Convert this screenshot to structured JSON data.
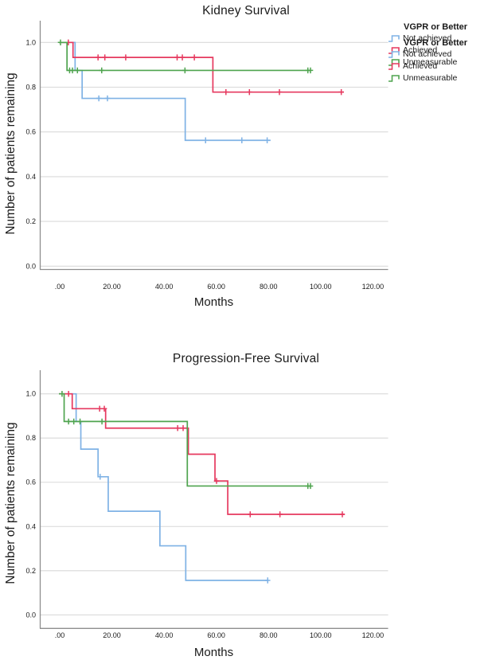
{
  "colors": {
    "not_achieved": "#7FB2E5",
    "achieved": "#E6395F",
    "unmeasurable": "#4FA44F",
    "gridline": "#D9D9D9",
    "axis_line": "#8E8E8E",
    "text": "#1a1a1a"
  },
  "chart_data": [
    {
      "type": "line",
      "subtype": "kaplan-meier-step",
      "title": "Kidney Survival",
      "xlabel": "Months",
      "ylabel": "Number of patients remaining",
      "legend_title": "VGPR or Better",
      "legend_position": "right",
      "grid": "horizontal",
      "xlim": [
        0,
        126
      ],
      "ylim": [
        0,
        1.0
      ],
      "x_tick_values": [
        0,
        20,
        40,
        60,
        80,
        100,
        120
      ],
      "x_tick_labels": [
        ".00",
        "20.00",
        "40.00",
        "60.00",
        "80.00",
        "100.00",
        "120.00"
      ],
      "y_tick_values": [
        0,
        0.2,
        0.4,
        0.6,
        0.8,
        1.0
      ],
      "y_tick_labels": [
        "0.0",
        "0.2",
        "0.4",
        "0.6",
        "0.8",
        "1.0"
      ],
      "series": [
        {
          "name": "Not achieved",
          "color_key": "not_achieved",
          "start_value": 1.0,
          "drops": [
            [
              6.2,
              0.875
            ],
            [
              8.9,
              0.75
            ],
            [
              48.4,
              0.5625
            ]
          ],
          "end_time": 81.1,
          "censors": [
            [
              15.3,
              0.75
            ],
            [
              18.6,
              0.75
            ],
            [
              56.2,
              0.5625
            ],
            [
              70.1,
              0.5625
            ],
            [
              79.8,
              0.5625
            ]
          ]
        },
        {
          "name": "Achieved",
          "color_key": "achieved",
          "start_value": 1.0,
          "drops": [
            [
              5.4,
              0.933
            ],
            [
              59.0,
              0.778
            ]
          ],
          "end_time": 109.2,
          "censors": [
            [
              3.6,
              1.0
            ],
            [
              15.0,
              0.933
            ],
            [
              17.6,
              0.933
            ],
            [
              25.6,
              0.933
            ],
            [
              45.3,
              0.933
            ],
            [
              47.3,
              0.933
            ],
            [
              51.9,
              0.933
            ],
            [
              64.0,
              0.778
            ],
            [
              73.0,
              0.778
            ],
            [
              84.5,
              0.778
            ],
            [
              108.2,
              0.778
            ]
          ]
        },
        {
          "name": "Unmeasurable",
          "color_key": "unmeasurable",
          "start_value": 1.0,
          "drops": [
            [
              3.1,
              0.875
            ]
          ],
          "end_time": 96.7,
          "censors": [
            [
              0.6,
              1.0
            ],
            [
              4.1,
              0.875
            ],
            [
              5.2,
              0.875
            ],
            [
              7.1,
              0.875
            ],
            [
              16.4,
              0.875
            ],
            [
              48.3,
              0.875
            ],
            [
              95.4,
              0.875
            ],
            [
              96.4,
              0.875
            ]
          ]
        }
      ]
    },
    {
      "type": "line",
      "subtype": "kaplan-meier-step",
      "title": "Progression-Free Survival",
      "xlabel": "Months",
      "ylabel": "Number of patients remaining",
      "legend_title": "VGPR or Better",
      "legend_position": "right",
      "grid": "horizontal",
      "xlim": [
        0,
        126
      ],
      "ylim": [
        0,
        1.0
      ],
      "x_tick_values": [
        0,
        20,
        40,
        60,
        80,
        100,
        120
      ],
      "x_tick_labels": [
        ".00",
        "20.00",
        "40.00",
        "60.00",
        "80.00",
        "100.00",
        "120.00"
      ],
      "y_tick_values": [
        0,
        0.2,
        0.4,
        0.6,
        0.8,
        1.0
      ],
      "y_tick_labels": [
        "0.0",
        "0.2",
        "0.4",
        "0.6",
        "0.8",
        "1.0"
      ],
      "series": [
        {
          "name": "Not achieved",
          "color_key": "not_achieved",
          "start_value": 1.0,
          "drops": [
            [
              6.6,
              0.875
            ],
            [
              8.4,
              0.75
            ],
            [
              15.0,
              0.625
            ],
            [
              18.9,
              0.469
            ],
            [
              38.7,
              0.3125
            ],
            [
              48.6,
              0.156
            ]
          ],
          "end_time": 80.3,
          "censors": [
            [
              15.8,
              0.625
            ],
            [
              80.0,
              0.156
            ]
          ]
        },
        {
          "name": "Achieved",
          "color_key": "achieved",
          "start_value": 1.0,
          "drops": [
            [
              5.1,
              0.933
            ],
            [
              17.9,
              0.845
            ],
            [
              49.6,
              0.727
            ],
            [
              59.8,
              0.606
            ],
            [
              64.7,
              0.455
            ]
          ],
          "end_time": 109.5,
          "censors": [
            [
              3.7,
              1.0
            ],
            [
              15.6,
              0.933
            ],
            [
              17.4,
              0.933
            ],
            [
              45.5,
              0.845
            ],
            [
              47.6,
              0.845
            ],
            [
              60.4,
              0.606
            ],
            [
              73.3,
              0.455
            ],
            [
              84.7,
              0.455
            ],
            [
              108.6,
              0.455
            ]
          ]
        },
        {
          "name": "Unmeasurable",
          "color_key": "unmeasurable",
          "start_value": 1.0,
          "drops": [
            [
              2.0,
              0.875
            ],
            [
              49.2,
              0.583
            ]
          ],
          "end_time": 96.7,
          "censors": [
            [
              1.2,
              1.0
            ],
            [
              3.7,
              0.875
            ],
            [
              5.7,
              0.875
            ],
            [
              8.1,
              0.875
            ],
            [
              16.5,
              0.875
            ],
            [
              95.4,
              0.583
            ],
            [
              96.4,
              0.583
            ]
          ]
        }
      ]
    }
  ]
}
